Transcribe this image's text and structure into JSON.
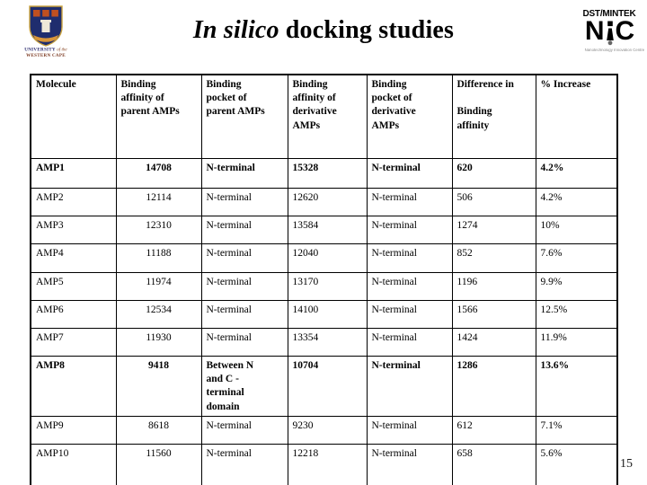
{
  "slide": {
    "title_italic": "In silico",
    "title_rest": "docking studies",
    "page_number": "15"
  },
  "logos": {
    "uwc": {
      "university": "UNIVERSITY",
      "of_the": "of the",
      "western_cape": "WESTERN CAPE"
    },
    "nic": {
      "top": "DST/MINTEK",
      "n": "N",
      "c": "C",
      "subtitle": "Nanotechnology Innovation Centre"
    }
  },
  "table": {
    "headers": [
      "Molecule",
      "Binding\naffinity of\nparent AMPs",
      "Binding\npocket of\nparent AMPs",
      "Binding\naffinity of\nderivative\nAMPs",
      "Binding\npocket of\nderivative\nAMPs",
      "Difference in\n\nBinding\naffinity",
      "% Increase"
    ],
    "rows": [
      {
        "bold": true,
        "cells": [
          "AMP1",
          "14708",
          "N-terminal",
          "15328",
          "N-terminal",
          "620",
          "4.2%"
        ]
      },
      {
        "bold": false,
        "cells": [
          "AMP2",
          "12114",
          "N-terminal",
          "12620",
          "N-terminal",
          "506",
          "4.2%"
        ]
      },
      {
        "bold": false,
        "cells": [
          "AMP3",
          "12310",
          "N-terminal",
          "13584",
          "N-terminal",
          "1274",
          "10%"
        ]
      },
      {
        "bold": false,
        "cells": [
          "AMP4",
          "11188",
          "N-terminal",
          "12040",
          "N-terminal",
          "852",
          "7.6%"
        ]
      },
      {
        "bold": false,
        "cells": [
          "AMP5",
          "11974",
          "N-terminal",
          "13170",
          "N-terminal",
          "1196",
          "9.9%"
        ]
      },
      {
        "bold": false,
        "cells": [
          "AMP6",
          "12534",
          "N-terminal",
          "14100",
          "N-terminal",
          "1566",
          "12.5%"
        ]
      },
      {
        "bold": false,
        "cells": [
          "AMP7",
          "11930",
          "N-terminal",
          "13354",
          "N-terminal",
          "1424",
          "11.9%"
        ]
      },
      {
        "bold": true,
        "cells": [
          "AMP8",
          "9418",
          "Between N\nand C -\nterminal\ndomain",
          "10704",
          "N-terminal",
          "1286",
          "13.6%"
        ]
      },
      {
        "bold": false,
        "cells": [
          "AMP9",
          "8618",
          "N-terminal",
          "9230",
          "N-terminal",
          "612",
          "7.1%"
        ]
      },
      {
        "bold": false,
        "cells": [
          "AMP10",
          "11560",
          "N-terminal",
          "12218",
          "N-terminal",
          "658",
          "5.6%"
        ]
      }
    ]
  }
}
